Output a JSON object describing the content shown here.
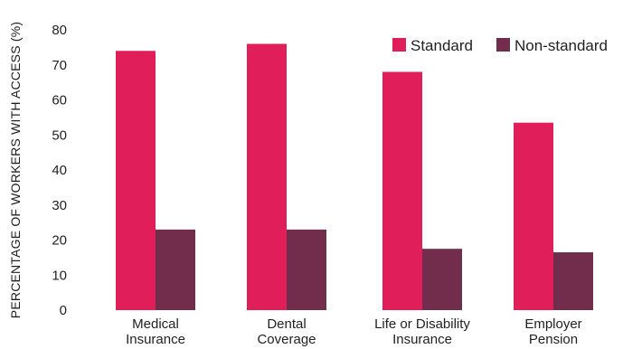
{
  "chart_data": {
    "type": "bar",
    "title": "",
    "xlabel": "",
    "ylabel": "PERCENTAGE OF WORKERS WITH ACCESS (%)",
    "ylim": [
      0,
      80
    ],
    "yticks": [
      0,
      10,
      20,
      30,
      40,
      50,
      60,
      70,
      80
    ],
    "grid": false,
    "legend_position": "top-right",
    "categories": [
      [
        "Medical",
        "Insurance"
      ],
      [
        "Dental",
        "Coverage"
      ],
      [
        "Life or Disability",
        "Insurance"
      ],
      [
        "Employer",
        "Pension"
      ]
    ],
    "series": [
      {
        "name": "Standard",
        "color": "#e01f5a",
        "values": [
          74,
          76,
          68,
          53.5
        ]
      },
      {
        "name": "Non-standard",
        "color": "#722c4c",
        "values": [
          23,
          23,
          17.5,
          16.5
        ]
      }
    ]
  }
}
